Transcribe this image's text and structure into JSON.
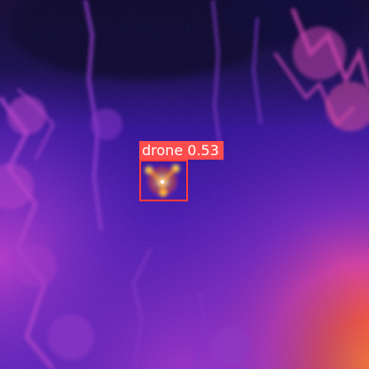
{
  "image": {
    "kind": "thermal infrared frame (false-color palette)",
    "palette": [
      "#090432",
      "#2a0a8c",
      "#5a1fb5",
      "#9a2fc0",
      "#d3359f",
      "#f15a2f",
      "#ffb23a",
      "#fff6c8"
    ]
  },
  "detections": [
    {
      "class_name": "drone",
      "confidence": "0.53",
      "box_color": "#ff3b3b",
      "label_bg": "#ff4d4d",
      "label_text_color": "#ffffff"
    }
  ]
}
